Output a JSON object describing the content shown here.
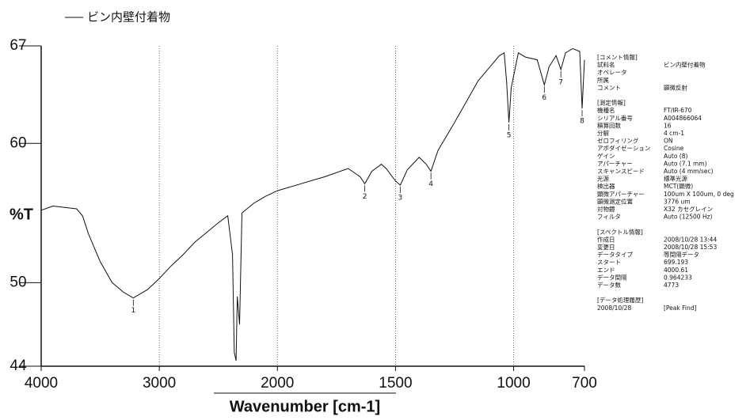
{
  "chart_data": {
    "type": "line",
    "ylabel": "%T",
    "xlabel": "Wavenumber [cm-1]",
    "xlim": [
      4000,
      700
    ],
    "xticks": [
      4000,
      3000,
      2000,
      1500,
      1000,
      700
    ],
    "xbreak": 2000,
    "xbreak_factor": 2,
    "ylim": [
      44,
      67
    ],
    "yticks": [
      44,
      50,
      60,
      67
    ],
    "grid": true,
    "series": [
      {
        "name": "ビン内壁付着物",
        "color": "#111111",
        "x": [
          4000,
          3900,
          3800,
          3700,
          3650,
          3600,
          3500,
          3400,
          3300,
          3220,
          3100,
          3000,
          2900,
          2800,
          2700,
          2600,
          2500,
          2420,
          2380,
          2365,
          2350,
          2340,
          2320,
          2300,
          2200,
          2100,
          2000,
          1900,
          1800,
          1700,
          1650,
          1630,
          1600,
          1560,
          1540,
          1500,
          1480,
          1450,
          1400,
          1370,
          1350,
          1320,
          1250,
          1200,
          1150,
          1100,
          1060,
          1040,
          1030,
          1020,
          1010,
          980,
          950,
          900,
          870,
          850,
          820,
          800,
          780,
          750,
          720,
          710,
          700
        ],
        "values": [
          55.2,
          55.5,
          55.4,
          55.3,
          54.8,
          53.5,
          51.5,
          50.0,
          49.3,
          48.9,
          49.5,
          50.3,
          51.2,
          52.0,
          52.9,
          53.6,
          54.3,
          54.8,
          52.0,
          45.0,
          44.4,
          49.0,
          47.0,
          55.0,
          55.7,
          56.2,
          56.6,
          57.1,
          57.6,
          58.2,
          57.6,
          57.1,
          58.0,
          58.5,
          58.2,
          57.3,
          57.0,
          58.1,
          59.0,
          58.5,
          58.0,
          59.5,
          61.5,
          63.0,
          64.5,
          65.5,
          66.3,
          66.5,
          64.5,
          61.5,
          64.0,
          66.5,
          66.2,
          66.0,
          64.2,
          65.5,
          66.3,
          65.3,
          66.5,
          66.8,
          66.6,
          62.5,
          66.0
        ]
      }
    ],
    "annotations": [
      {
        "label": "1",
        "x": 3220,
        "y": 48.9
      },
      {
        "label": "2",
        "x": 1630,
        "y": 57.1
      },
      {
        "label": "3",
        "x": 1480,
        "y": 57.0
      },
      {
        "label": "4",
        "x": 1350,
        "y": 58.0
      },
      {
        "label": "5",
        "x": 1020,
        "y": 61.5
      },
      {
        "label": "6",
        "x": 870,
        "y": 64.2
      },
      {
        "label": "7",
        "x": 800,
        "y": 65.3
      },
      {
        "label": "8",
        "x": 710,
        "y": 62.5
      }
    ]
  },
  "info_panel": [
    [
      "[コメント情報]",
      ""
    ],
    [
      "試料名",
      "ビン内壁付着物"
    ],
    [
      "オペレータ",
      ""
    ],
    [
      "所属",
      ""
    ],
    [
      "コメント",
      "顕微反射"
    ],
    [
      "",
      ""
    ],
    [
      "[測定情報]",
      ""
    ],
    [
      "機種名",
      "FT/IR-670"
    ],
    [
      "シリアル番号",
      "A004866064"
    ],
    [
      "積算回数",
      "16"
    ],
    [
      "分解",
      "4 cm-1"
    ],
    [
      "ゼロフィリング",
      "ON"
    ],
    [
      "アポダイゼーション",
      "Cosine"
    ],
    [
      "ゲイン",
      "Auto (8)"
    ],
    [
      "アパーチャー",
      "Auto (7.1 mm)"
    ],
    [
      "スキャンスピード",
      "Auto (4 mm/sec)"
    ],
    [
      "光源",
      "標準光源"
    ],
    [
      "検出器",
      "MCT(顕微)"
    ],
    [
      "顕微アパーチャー",
      "100um X 100um, 0 deg"
    ],
    [
      "顕微測定位置",
      "3776 um"
    ],
    [
      "対物鏡",
      "X32 カセグレイン"
    ],
    [
      "フィルタ",
      "Auto (12500 Hz)"
    ],
    [
      "",
      ""
    ],
    [
      "[スペクトル情報]",
      ""
    ],
    [
      "作成日",
      "2008/10/28 13:44"
    ],
    [
      "変更日",
      "2008/10/28 15:53"
    ],
    [
      "データタイプ",
      "等間隔データ"
    ],
    [
      "スタート",
      "699.193"
    ],
    [
      "エンド",
      "4000.61"
    ],
    [
      "データ間隔",
      "0.964233"
    ],
    [
      "データ数",
      "4773"
    ],
    [
      "",
      ""
    ],
    [
      "[データ処理履歴]",
      ""
    ],
    [
      "2008/10/28",
      "[Peak Find]"
    ]
  ]
}
